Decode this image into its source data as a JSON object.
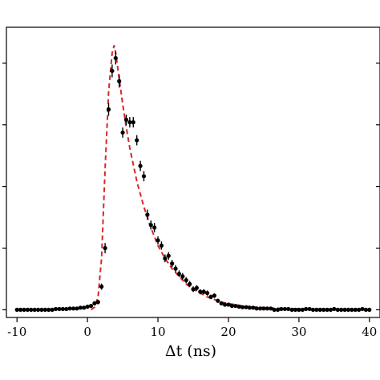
{
  "chart_data": {
    "type": "scatter",
    "xlabel": "Δt (ns)",
    "ylabel": "",
    "title": "",
    "xlim": [
      -11.5,
      41.5
    ],
    "ylim": [
      -0.03,
      1.1
    ],
    "xticks": [
      -10,
      0,
      10,
      20,
      30,
      40
    ],
    "xtick_labels": [
      "-10",
      "0",
      "10",
      "20",
      "30",
      "40"
    ],
    "yticks": [
      0.0,
      0.24,
      0.48,
      0.72,
      0.96
    ],
    "grid": false,
    "legend": "none",
    "colors": {
      "data": "#000000",
      "fit": "#d62728"
    },
    "series": [
      {
        "kind": "points-with-errorbars",
        "x": [
          -10,
          -9.5,
          -9,
          -8.5,
          -8,
          -7.5,
          -7,
          -6.5,
          -6,
          -5.5,
          -5,
          -4.5,
          -4,
          -3.5,
          -3,
          -2.5,
          -2,
          -1.5,
          -1,
          -0.5,
          0,
          0.5,
          1,
          1.5,
          2,
          2.5,
          3,
          3.5,
          4,
          4.5,
          5,
          5.5,
          6,
          6.5,
          7,
          7.5,
          8,
          8.5,
          9,
          9.5,
          10,
          10.5,
          11,
          11.5,
          12,
          12.5,
          13,
          13.5,
          14,
          14.5,
          15,
          15.5,
          16,
          16.5,
          17,
          17.5,
          18,
          18.5,
          19,
          19.5,
          20,
          20.5,
          21,
          21.5,
          22,
          22.5,
          23,
          23.5,
          24,
          24.5,
          25,
          25.5,
          26,
          26.5,
          27,
          27.5,
          28,
          28.5,
          29,
          29.5,
          30,
          30.5,
          31,
          31.5,
          32,
          32.5,
          33,
          33.5,
          34,
          34.5,
          35,
          35.5,
          36,
          36.5,
          37,
          37.5,
          38,
          38.5,
          39,
          39.5,
          40
        ],
        "y": [
          0.0,
          0.0,
          0.0,
          0.0,
          0.0,
          0.0,
          0.0,
          0.0,
          0.0,
          0.0,
          0.0,
          0.003,
          0.003,
          0.003,
          0.003,
          0.005,
          0.005,
          0.005,
          0.008,
          0.008,
          0.012,
          0.015,
          0.025,
          0.03,
          0.09,
          0.24,
          0.78,
          0.93,
          0.98,
          0.89,
          0.69,
          0.74,
          0.73,
          0.73,
          0.66,
          0.56,
          0.52,
          0.37,
          0.33,
          0.32,
          0.27,
          0.25,
          0.2,
          0.21,
          0.18,
          0.16,
          0.14,
          0.13,
          0.115,
          0.1,
          0.08,
          0.085,
          0.07,
          0.07,
          0.065,
          0.05,
          0.055,
          0.035,
          0.025,
          0.02,
          0.02,
          0.015,
          0.015,
          0.012,
          0.01,
          0.01,
          0.008,
          0.008,
          0.005,
          0.005,
          0.005,
          0.005,
          0.005,
          0.0,
          0.0,
          0.003,
          0.003,
          0.003,
          0.0,
          0.0,
          0.0,
          0.0,
          0.003,
          0.003,
          0.0,
          0.0,
          0.0,
          0.0,
          0.0,
          0.0,
          0.003,
          0.0,
          0.0,
          0.0,
          0.0,
          0.0,
          0.0,
          0.0,
          0.003,
          0.0,
          0.0
        ],
        "yerr": [
          0.004,
          0.004,
          0.004,
          0.004,
          0.004,
          0.004,
          0.004,
          0.004,
          0.004,
          0.004,
          0.004,
          0.004,
          0.004,
          0.004,
          0.004,
          0.004,
          0.004,
          0.004,
          0.004,
          0.005,
          0.006,
          0.006,
          0.008,
          0.009,
          0.012,
          0.02,
          0.025,
          0.025,
          0.025,
          0.025,
          0.02,
          0.02,
          0.02,
          0.02,
          0.02,
          0.02,
          0.02,
          0.02,
          0.018,
          0.018,
          0.016,
          0.016,
          0.015,
          0.015,
          0.014,
          0.014,
          0.013,
          0.013,
          0.012,
          0.012,
          0.011,
          0.011,
          0.01,
          0.01,
          0.01,
          0.009,
          0.009,
          0.008,
          0.008,
          0.007,
          0.007,
          0.006,
          0.006,
          0.006,
          0.005,
          0.005,
          0.005,
          0.005,
          0.005,
          0.005,
          0.005,
          0.005,
          0.005,
          0.004,
          0.004,
          0.004,
          0.004,
          0.004,
          0.004,
          0.004,
          0.004,
          0.004,
          0.004,
          0.004,
          0.004,
          0.004,
          0.004,
          0.004,
          0.004,
          0.004,
          0.004,
          0.004,
          0.004,
          0.004,
          0.004,
          0.004,
          0.004,
          0.004,
          0.004,
          0.004,
          0.004
        ]
      },
      {
        "kind": "dashed-fit-curve",
        "x": [
          0.5,
          1,
          1.5,
          2,
          2.5,
          3,
          3.5,
          3.8,
          4,
          4.5,
          5,
          5.5,
          6,
          7,
          8,
          9,
          10,
          11,
          12,
          13,
          14,
          15,
          16,
          17,
          18,
          19,
          20,
          21,
          22,
          24,
          26,
          28,
          30,
          32,
          34,
          36,
          38,
          40
        ],
        "y": [
          0.0,
          0.01,
          0.05,
          0.2,
          0.55,
          0.85,
          1.0,
          1.03,
          1.0,
          0.9,
          0.8,
          0.71,
          0.63,
          0.5,
          0.4,
          0.32,
          0.25,
          0.2,
          0.16,
          0.13,
          0.1,
          0.08,
          0.065,
          0.05,
          0.04,
          0.03,
          0.024,
          0.02,
          0.015,
          0.01,
          0.007,
          0.005,
          0.004,
          0.003,
          0.002,
          0.002,
          0.001,
          0.001
        ]
      }
    ]
  }
}
